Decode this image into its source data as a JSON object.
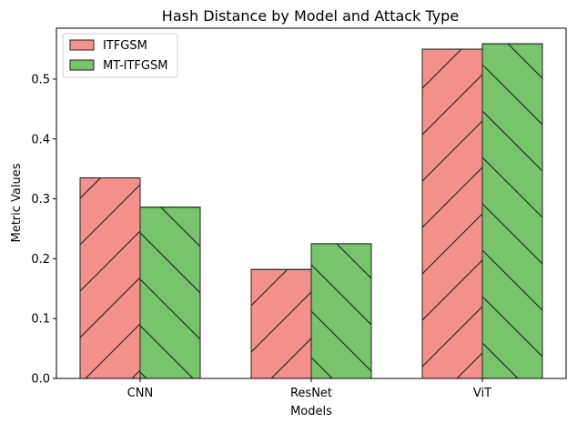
{
  "chart_data": {
    "type": "bar",
    "title": "Hash Distance by Model and Attack Type",
    "xlabel": "Models",
    "ylabel": "Metric Values",
    "categories": [
      "CNN",
      "ResNet",
      "ViT"
    ],
    "series": [
      {
        "name": "ITFGSM",
        "values": [
          0.335,
          0.182,
          0.55
        ],
        "color": "#f4918a",
        "hatch": "forward-slash"
      },
      {
        "name": "MT-ITFGSM",
        "values": [
          0.286,
          0.225,
          0.559
        ],
        "color": "#77c46c",
        "hatch": "back-slash"
      }
    ],
    "ylim": [
      0,
      0.585
    ],
    "yticks": [
      "0.0",
      "0.1",
      "0.2",
      "0.3",
      "0.4",
      "0.5"
    ],
    "grid": false,
    "legend_position": "top-left"
  }
}
